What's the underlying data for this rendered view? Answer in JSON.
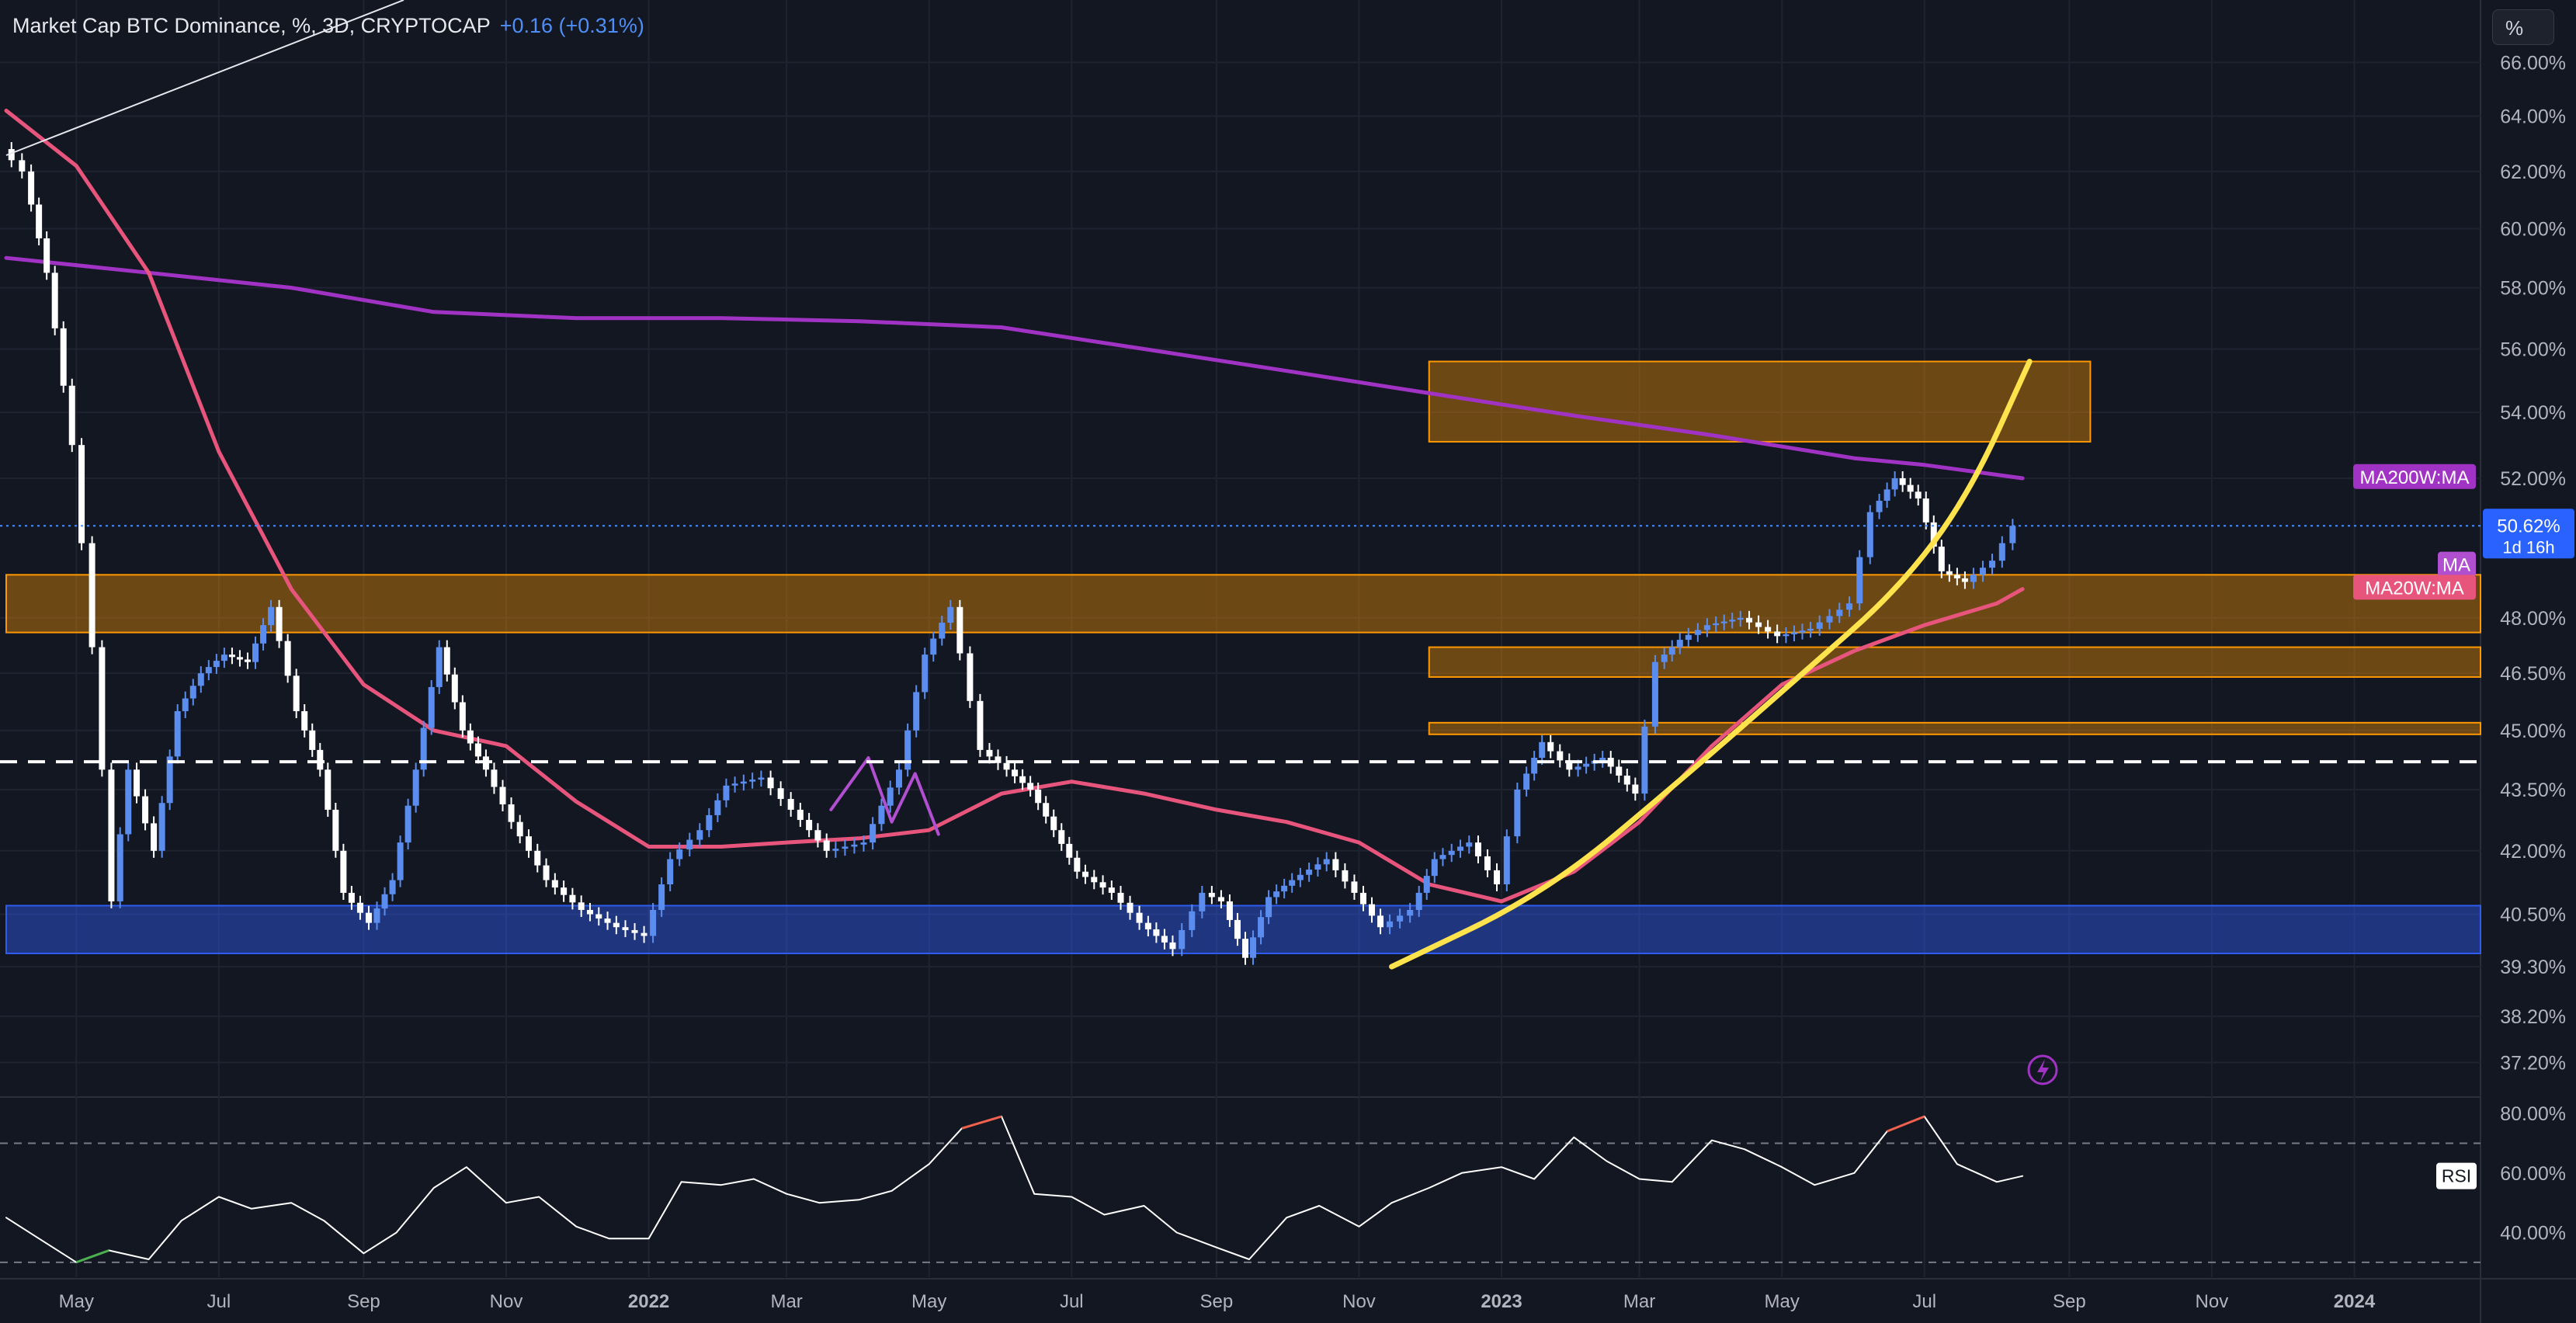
{
  "header": {
    "symbol": "Market Cap BTC Dominance, %, 3D, CRYPTOCAP",
    "change": "+0.16 (+0.31%)"
  },
  "scale_button": "%",
  "colors": {
    "background": "#131722",
    "candle_up": "#5b8def",
    "candle_down": "#ffffff",
    "ma20w": "#e8557c",
    "ma200w": "#a133c4",
    "ma": "#b14fd1",
    "parabola": "#ffe34d",
    "resistance_zone": "#ff9800",
    "support_zone": "#2f5cf0",
    "rsi_line": "#ffffff",
    "rsi_overbought": "#f0624d",
    "rsi_oversold": "#4caf50"
  },
  "icons": [
    "lightning-icon"
  ],
  "chart_data": [
    {
      "type": "candlestick",
      "title": "Market Cap BTC Dominance, %, 3D, CRYPTOCAP",
      "x_ticks": [
        "May",
        "Jul",
        "Sep",
        "Nov",
        "2022",
        "Mar",
        "May",
        "Jul",
        "Sep",
        "Nov",
        "2023",
        "Mar",
        "May",
        "Jul",
        "Sep",
        "Nov",
        "2024"
      ],
      "x_tick_dates": [
        "2021-05-01",
        "2021-07-01",
        "2021-09-01",
        "2021-11-01",
        "2022-01-01",
        "2022-03-01",
        "2022-05-01",
        "2022-07-01",
        "2022-09-01",
        "2022-11-01",
        "2023-01-01",
        "2023-03-01",
        "2023-05-01",
        "2023-07-01",
        "2023-09-01",
        "2023-11-01",
        "2024-01-01"
      ],
      "y_ticks": [
        "66.00%",
        "64.00%",
        "62.00%",
        "60.00%",
        "58.00%",
        "56.00%",
        "54.00%",
        "52.00%",
        "48.00%",
        "46.50%",
        "45.00%",
        "43.50%",
        "42.00%",
        "40.50%",
        "39.30%",
        "38.20%",
        "37.20%"
      ],
      "y_tick_values": [
        66,
        64,
        62,
        60,
        58,
        56,
        54,
        52,
        48,
        46.5,
        45,
        43.5,
        42,
        40.5,
        39.3,
        38.2,
        37.2
      ],
      "price_series": {
        "name": "BTC Dominance",
        "x": [
          "2021-04-01",
          "2021-04-10",
          "2021-04-20",
          "2021-05-01",
          "2021-05-10",
          "2021-05-18",
          "2021-05-25",
          "2021-06-05",
          "2021-06-15",
          "2021-06-25",
          "2021-07-05",
          "2021-07-15",
          "2021-07-25",
          "2021-08-05",
          "2021-08-15",
          "2021-08-25",
          "2021-09-05",
          "2021-09-15",
          "2021-09-25",
          "2021-10-05",
          "2021-10-15",
          "2021-10-25",
          "2021-11-05",
          "2021-11-20",
          "2021-12-05",
          "2021-12-20",
          "2022-01-01",
          "2022-01-12",
          "2022-01-25",
          "2022-02-05",
          "2022-02-20",
          "2022-03-05",
          "2022-03-20",
          "2022-04-05",
          "2022-04-20",
          "2022-05-01",
          "2022-05-12",
          "2022-05-25",
          "2022-06-05",
          "2022-06-15",
          "2022-06-25",
          "2022-07-05",
          "2022-07-20",
          "2022-08-01",
          "2022-08-15",
          "2022-08-28",
          "2022-09-05",
          "2022-09-15",
          "2022-09-25",
          "2022-10-05",
          "2022-10-20",
          "2022-11-01",
          "2022-11-12",
          "2022-11-25",
          "2022-12-05",
          "2022-12-20",
          "2023-01-01",
          "2023-01-10",
          "2023-01-20",
          "2023-02-01",
          "2023-02-15",
          "2023-03-01",
          "2023-03-10",
          "2023-03-20",
          "2023-04-01",
          "2023-04-15",
          "2023-05-01",
          "2023-05-15",
          "2023-06-01",
          "2023-06-10",
          "2023-06-20",
          "2023-06-30",
          "2023-07-10",
          "2023-07-20",
          "2023-08-01",
          "2023-08-10"
        ],
        "close": [
          62.8,
          62.0,
          58.5,
          53.0,
          47.2,
          40.8,
          44.0,
          42.0,
          45.5,
          46.5,
          47.0,
          46.8,
          48.3,
          45.5,
          44.0,
          41.0,
          40.3,
          41.3,
          44.0,
          47.2,
          45.0,
          44.0,
          42.7,
          41.3,
          40.6,
          40.2,
          40.0,
          41.8,
          42.5,
          43.6,
          43.8,
          43.0,
          42.0,
          42.2,
          44.0,
          47.0,
          48.3,
          44.5,
          44.0,
          43.5,
          42.5,
          41.5,
          41.0,
          40.3,
          39.7,
          41.0,
          40.8,
          39.5,
          40.9,
          41.3,
          41.8,
          41.0,
          40.2,
          40.6,
          41.8,
          42.2,
          41.2,
          43.5,
          44.7,
          44.0,
          44.3,
          43.4,
          46.8,
          47.4,
          47.8,
          48.0,
          47.5,
          47.7,
          48.4,
          51.0,
          52.0,
          51.4,
          49.3,
          49.0,
          49.6,
          50.6
        ]
      },
      "ma20w": {
        "name": "MA20W:MA",
        "x": [
          "2021-04-01",
          "2021-05-01",
          "2021-06-01",
          "2021-07-01",
          "2021-08-01",
          "2021-09-01",
          "2021-10-01",
          "2021-11-01",
          "2021-12-01",
          "2022-01-01",
          "2022-02-01",
          "2022-03-01",
          "2022-04-01",
          "2022-05-01",
          "2022-06-01",
          "2022-07-01",
          "2022-08-01",
          "2022-09-01",
          "2022-10-01",
          "2022-11-01",
          "2022-12-01",
          "2023-01-01",
          "2023-02-01",
          "2023-03-01",
          "2023-04-01",
          "2023-05-01",
          "2023-06-01",
          "2023-07-01",
          "2023-08-01",
          "2023-08-12"
        ],
        "y": [
          64.2,
          62.2,
          58.5,
          52.8,
          48.8,
          46.2,
          45.0,
          44.6,
          43.2,
          42.1,
          42.1,
          42.2,
          42.3,
          42.5,
          43.4,
          43.7,
          43.4,
          43.0,
          42.7,
          42.2,
          41.2,
          40.8,
          41.5,
          42.7,
          44.6,
          46.2,
          47.1,
          47.8,
          48.4,
          48.8
        ]
      },
      "ma200w": {
        "name": "MA200W:MA",
        "x": [
          "2021-04-01",
          "2021-06-01",
          "2021-08-01",
          "2021-10-01",
          "2021-12-01",
          "2022-02-01",
          "2022-04-01",
          "2022-06-01",
          "2022-08-01",
          "2022-10-01",
          "2022-12-01",
          "2023-02-01",
          "2023-04-01",
          "2023-06-01",
          "2023-07-01",
          "2023-08-12"
        ],
        "y": [
          59.0,
          58.5,
          58.0,
          57.2,
          57.0,
          57.0,
          56.9,
          56.7,
          56.0,
          55.3,
          54.6,
          53.9,
          53.3,
          52.6,
          52.4,
          52.0
        ]
      },
      "ma_line": {
        "name": "MA",
        "x": [
          "2022-03-20",
          "2022-04-05",
          "2022-04-15",
          "2022-04-25",
          "2022-05-05"
        ],
        "y": [
          43.0,
          44.3,
          42.7,
          43.9,
          42.4
        ]
      },
      "zones": [
        {
          "kind": "resistance",
          "from": "2022-12-01",
          "to": "2023-09-10",
          "low": 53.1,
          "high": 55.6
        },
        {
          "kind": "resistance",
          "from": "2021-04-01",
          "to": "2024-03-01",
          "low": 47.6,
          "high": 49.2
        },
        {
          "kind": "resistance",
          "from": "2022-12-01",
          "to": "2024-03-01",
          "low": 46.4,
          "high": 47.2
        },
        {
          "kind": "resistance",
          "from": "2022-12-01",
          "to": "2024-03-01",
          "low": 44.9,
          "high": 45.2
        },
        {
          "kind": "support",
          "from": "2021-04-01",
          "to": "2024-03-01",
          "low": 39.6,
          "high": 40.7
        }
      ],
      "horizontal_level": 44.2,
      "parabola_points": [
        {
          "x": "2022-11-15",
          "y": 39.3
        },
        {
          "x": "2023-01-20",
          "y": 41.0
        },
        {
          "x": "2023-03-20",
          "y": 43.8
        },
        {
          "x": "2023-05-10",
          "y": 46.5
        },
        {
          "x": "2023-06-20",
          "y": 48.8
        },
        {
          "x": "2023-07-20",
          "y": 51.5
        },
        {
          "x": "2023-08-15",
          "y": 55.6
        }
      ],
      "last_value": "50.62%",
      "countdown": "1d 16h",
      "line_labels": [
        "MA200W:MA",
        "MA",
        "MA20W:MA"
      ]
    },
    {
      "type": "line",
      "name": "RSI",
      "y_ticks": [
        "80.00%",
        "60.00%",
        "40.00%"
      ],
      "y_tick_values": [
        80,
        60,
        40
      ],
      "overbought": 70,
      "oversold": 30,
      "x": [
        "2021-04-01",
        "2021-04-15",
        "2021-05-01",
        "2021-05-15",
        "2021-06-01",
        "2021-06-15",
        "2021-07-01",
        "2021-07-15",
        "2021-08-01",
        "2021-08-15",
        "2021-09-01",
        "2021-09-15",
        "2021-10-01",
        "2021-10-15",
        "2021-11-01",
        "2021-11-15",
        "2021-12-01",
        "2021-12-15",
        "2022-01-01",
        "2022-01-15",
        "2022-02-01",
        "2022-02-15",
        "2022-03-01",
        "2022-03-15",
        "2022-04-01",
        "2022-04-15",
        "2022-05-01",
        "2022-05-15",
        "2022-06-01",
        "2022-06-15",
        "2022-07-01",
        "2022-07-15",
        "2022-08-01",
        "2022-08-15",
        "2022-09-01",
        "2022-09-15",
        "2022-10-01",
        "2022-10-15",
        "2022-11-01",
        "2022-11-15",
        "2022-12-01",
        "2022-12-15",
        "2023-01-01",
        "2023-01-15",
        "2023-02-01",
        "2023-02-15",
        "2023-03-01",
        "2023-03-15",
        "2023-04-01",
        "2023-04-15",
        "2023-05-01",
        "2023-05-15",
        "2023-06-01",
        "2023-06-15",
        "2023-07-01",
        "2023-07-15",
        "2023-08-01",
        "2023-08-12"
      ],
      "y": [
        45,
        38,
        30,
        34,
        31,
        44,
        52,
        48,
        50,
        44,
        33,
        40,
        55,
        62,
        50,
        52,
        42,
        38,
        38,
        57,
        56,
        58,
        53,
        50,
        51,
        54,
        63,
        75,
        79,
        53,
        52,
        46,
        49,
        40,
        35,
        31,
        45,
        49,
        42,
        50,
        55,
        60,
        62,
        58,
        72,
        64,
        58,
        57,
        71,
        68,
        62,
        56,
        60,
        74,
        79,
        63,
        57,
        59
      ]
    }
  ]
}
